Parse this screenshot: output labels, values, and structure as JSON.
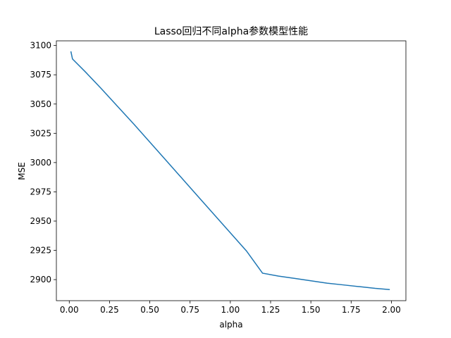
{
  "chart_data": {
    "type": "line",
    "title": "Lasso回归不同alpha参数模型性能",
    "xlabel": "alpha",
    "ylabel": "MSE",
    "xlim": [
      -0.08,
      2.09
    ],
    "ylim": [
      2882,
      3104
    ],
    "xticks": [
      "0.00",
      "0.25",
      "0.50",
      "0.75",
      "1.00",
      "1.25",
      "1.50",
      "1.75",
      "2.00"
    ],
    "yticks": [
      "2900",
      "2925",
      "2950",
      "2975",
      "3000",
      "3025",
      "3050",
      "3075",
      "3100"
    ],
    "grid": false,
    "line_color": "#1f77b4",
    "series": [
      {
        "x": [
          0.01,
          0.02,
          0.1,
          0.2,
          0.3,
          0.4,
          0.5,
          0.6,
          0.7,
          0.8,
          0.9,
          1.0,
          1.1,
          1.2,
          1.3,
          1.4,
          1.5,
          1.6,
          1.7,
          1.8,
          1.9,
          1.99
        ],
        "y": [
          3095,
          3088.5,
          3077.5,
          3063,
          3048,
          3033,
          3017.5,
          3002,
          2986.5,
          2971,
          2955.5,
          2940,
          2924.5,
          2905.5,
          2903,
          2901,
          2899,
          2897,
          2895.5,
          2894,
          2892.5,
          2891.5
        ]
      }
    ]
  }
}
